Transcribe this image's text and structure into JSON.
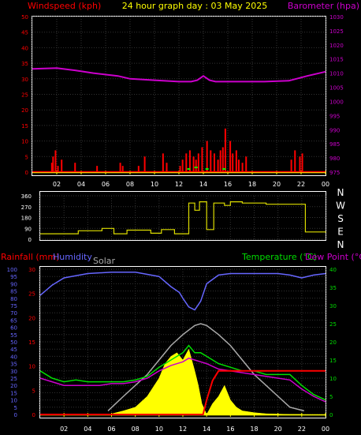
{
  "header": {
    "left_title": "Windspeed (kph)",
    "center_title": "24 hour graph day : 03 May 2025",
    "right_title": "Barometer (hpa)"
  },
  "legend": {
    "rainfall": "Rainfall (mm)",
    "humidity": "Humidity",
    "solar": "Solar",
    "temperature": "Temperature (°C)",
    "dewpoint": "Dew Point (°C)"
  },
  "colors": {
    "wind": "#ff0000",
    "gust": "#00ff00",
    "barometer": "#cc00cc",
    "direction": "#dddd00",
    "humidity": "#6666ff",
    "solar_fill": "#ffff00",
    "solar_curve": "#aaaaaa",
    "temperature": "#00dd00",
    "dewpoint": "#cc00cc",
    "rain": "#ff0000",
    "time_axis": "#ffff00",
    "frame": "#ffffff"
  },
  "chart_data": [
    {
      "id": "wind_baro",
      "type": "line",
      "x_ticks": [
        "02",
        "04",
        "06",
        "08",
        "10",
        "12",
        "14",
        "16",
        "18",
        "20",
        "22",
        "00"
      ],
      "y_left_ticks": [
        "0",
        "5",
        "10",
        "15",
        "20",
        "25",
        "30",
        "35",
        "40",
        "45",
        "50"
      ],
      "y_right_ticks": [
        "975",
        "980",
        "985",
        "990",
        "995",
        "1000",
        "1005",
        "1010",
        "1015",
        "1020",
        "1025",
        "1030"
      ],
      "ylim_left": [
        0,
        50
      ],
      "ylim_right": [
        975,
        1030
      ],
      "barometer": {
        "x": [
          0,
          2,
          3.5,
          5,
          7,
          8,
          10,
          12,
          13,
          13.5,
          14,
          14.5,
          15,
          17,
          19,
          21,
          22.5,
          24
        ],
        "y": [
          1011.5,
          1011.8,
          1011,
          1010,
          1009,
          1008,
          1007.5,
          1007,
          1007,
          1007.5,
          1009,
          1007.5,
          1007,
          1007,
          1007,
          1007.3,
          1009,
          1010.5
        ]
      },
      "wind": {
        "x": [
          1.6,
          1.7,
          1.9,
          2.1,
          2.4,
          3.5,
          5.3,
          7.2,
          7.4,
          8.7,
          9.2,
          10.7,
          11,
          12.1,
          12.3,
          12.6,
          12.9,
          13.2,
          13.4,
          13.6,
          13.9,
          14.3,
          14.6,
          14.9,
          15.2,
          15.4,
          15.6,
          15.8,
          16.2,
          16.4,
          16.7,
          16.9,
          17.2,
          17.5,
          21.2,
          21.5,
          21.9,
          22.1
        ],
        "y": [
          3,
          5,
          7,
          2,
          4,
          3,
          2,
          3,
          2,
          2,
          5,
          6,
          3,
          2,
          4,
          6,
          7,
          5,
          4,
          6,
          8,
          10,
          7,
          6,
          4,
          7,
          8,
          14,
          10,
          6,
          7,
          4,
          3,
          5,
          4,
          7,
          5,
          6
        ]
      },
      "gust": {
        "x": [
          12.8,
          13.4,
          14.3,
          15.7
        ],
        "y": [
          1,
          1.5,
          1,
          1
        ]
      }
    },
    {
      "id": "wind_direction",
      "type": "line",
      "y_ticks": [
        "360",
        "270",
        "180",
        "90",
        "0"
      ],
      "compass": [
        "N",
        "W",
        "S",
        "E",
        "N"
      ],
      "ylim": [
        0,
        360
      ],
      "direction": {
        "x": [
          0,
          3,
          3.2,
          5,
          5.2,
          6,
          6.2,
          7,
          7.3,
          9,
          9.3,
          10,
          10.2,
          11,
          11.3,
          12,
          12.5,
          13,
          13.4,
          14,
          14.6,
          15.5,
          16,
          17,
          19,
          21,
          22,
          22.3,
          24
        ],
        "y": [
          45,
          45,
          70,
          70,
          90,
          90,
          45,
          45,
          75,
          75,
          50,
          50,
          80,
          80,
          45,
          45,
          300,
          240,
          310,
          80,
          300,
          280,
          310,
          300,
          290,
          290,
          290,
          60,
          55
        ]
      }
    },
    {
      "id": "temp_solar_rain",
      "type": "area",
      "y_left_ticks": [
        "0",
        "5",
        "10",
        "15",
        "20",
        "25",
        "30",
        "35",
        "40",
        "45",
        "50",
        "55",
        "60",
        "65",
        "70",
        "75",
        "80",
        "85",
        "90",
        "95",
        "100"
      ],
      "y_rain_ticks": [
        "0",
        "5",
        "10",
        "15",
        "20",
        "25",
        "30"
      ],
      "y_right_ticks": [
        "0",
        "5",
        "10",
        "15",
        "20",
        "25",
        "30",
        "35",
        "40"
      ],
      "ylim_humidity": [
        0,
        100
      ],
      "ylim_temperature": [
        0,
        40
      ],
      "ylim_rain": [
        0,
        30
      ],
      "humidity": {
        "x": [
          0,
          1,
          2,
          4,
          6,
          8,
          10,
          11,
          11.7,
          12,
          12.5,
          13,
          13.5,
          14,
          15,
          16,
          18,
          20,
          21,
          22,
          23,
          24
        ],
        "y": [
          82,
          89,
          94,
          97,
          98,
          98,
          95,
          88,
          84,
          80,
          74,
          72,
          78,
          90,
          96,
          97,
          97,
          97,
          96,
          94,
          96,
          97
        ]
      },
      "solar_curve": {
        "x": [
          5.7,
          7,
          8,
          9,
          10,
          11,
          12,
          13,
          13.5,
          14,
          15,
          16,
          17,
          18,
          19,
          20,
          21,
          22.2
        ],
        "y": [
          1,
          5,
          8,
          11,
          15,
          19,
          22,
          24.5,
          25,
          24.5,
          22,
          19,
          15,
          11,
          8,
          5,
          2,
          1
        ]
      },
      "solar": {
        "x": [
          5.8,
          7,
          8,
          9,
          10,
          10.5,
          11,
          11.5,
          12,
          12.5,
          13,
          13.3,
          13.6,
          14,
          14.5,
          15,
          15.5,
          16,
          16.5,
          17,
          18,
          19,
          20,
          21,
          22
        ],
        "y": [
          0,
          1,
          2,
          5,
          10,
          14,
          16,
          17,
          15,
          18,
          12,
          8,
          3,
          0,
          3,
          5,
          8,
          4,
          2,
          1,
          0.5,
          0.2,
          0.1,
          0,
          0
        ]
      },
      "temperature": {
        "x": [
          0,
          1,
          2,
          3,
          4,
          5,
          6,
          7,
          8,
          9,
          10,
          11,
          12,
          12.5,
          13,
          13.5,
          14,
          15,
          16,
          17,
          18,
          19,
          20,
          21,
          22,
          23,
          24
        ],
        "y": [
          12,
          10,
          9,
          9.5,
          9,
          9,
          9,
          9,
          9.5,
          10.5,
          13,
          15,
          17,
          19,
          17,
          17,
          16,
          14,
          13,
          12,
          12,
          11,
          11,
          11,
          8,
          5.5,
          4
        ]
      },
      "dewpoint": {
        "x": [
          0,
          1,
          2,
          3,
          4,
          5,
          6,
          7,
          8,
          9,
          10,
          11,
          12,
          12.5,
          13,
          13.5,
          14,
          15,
          16,
          17,
          18,
          19,
          20,
          21,
          22,
          23,
          24
        ],
        "y": [
          10,
          9,
          8,
          8,
          8,
          8,
          8.5,
          8.5,
          9,
          10,
          12,
          13.5,
          14.5,
          15.5,
          15,
          14.5,
          14,
          12.5,
          12,
          11.5,
          11,
          10.5,
          10,
          9.5,
          7,
          5,
          3.5
        ]
      },
      "rain": {
        "x": [
          0,
          13.7,
          14,
          14.5,
          15,
          16,
          24
        ],
        "y": [
          0,
          0,
          3,
          7,
          9,
          9,
          9
        ]
      }
    }
  ]
}
